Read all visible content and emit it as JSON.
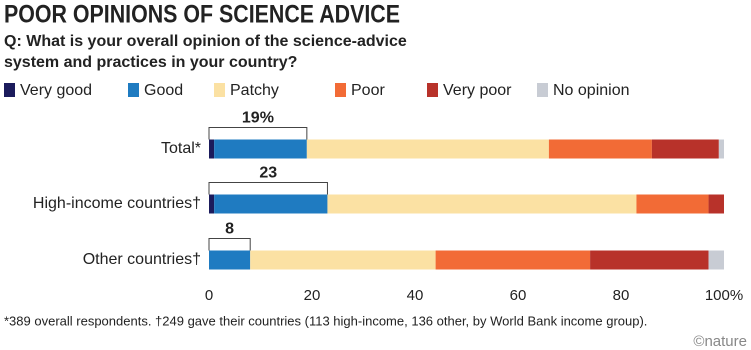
{
  "chart_data": {
    "type": "stacked-bar-horizontal",
    "title": "POOR OPINIONS OF SCIENCE ADVICE",
    "subtitle": [
      "Q: What is your overall opinion of the science-advice",
      "system and practices in your country?"
    ],
    "categories": [
      "Total*",
      "High-income countries†",
      "Other countries†"
    ],
    "series": [
      {
        "name": "Very good",
        "color": "#1b1b5c",
        "values": [
          1,
          1,
          0
        ]
      },
      {
        "name": "Good",
        "color": "#1f7bc1",
        "values": [
          18,
          22,
          8
        ]
      },
      {
        "name": "Patchy",
        "color": "#fbe1a3",
        "values": [
          47,
          60,
          36
        ]
      },
      {
        "name": "Poor",
        "color": "#f26b36",
        "values": [
          20,
          14,
          30
        ]
      },
      {
        "name": "Very poor",
        "color": "#b8322a",
        "values": [
          13,
          3,
          23
        ]
      },
      {
        "name": "No opinion",
        "color": "#c8ccd4",
        "values": [
          1,
          0,
          3
        ]
      }
    ],
    "bracket_values": [
      19,
      23,
      8
    ],
    "bracket_labels": [
      "19%",
      "23",
      "8"
    ],
    "xlim": [
      0,
      100
    ],
    "xticks": [
      0,
      20,
      40,
      60,
      80,
      {
        "value": 100,
        "label": "100%"
      }
    ],
    "grid": false,
    "footnote": "*389 overall respondents. †249 gave their countries (113 high-income, 136 other, by World Bank income group).",
    "credit": "©nature"
  }
}
